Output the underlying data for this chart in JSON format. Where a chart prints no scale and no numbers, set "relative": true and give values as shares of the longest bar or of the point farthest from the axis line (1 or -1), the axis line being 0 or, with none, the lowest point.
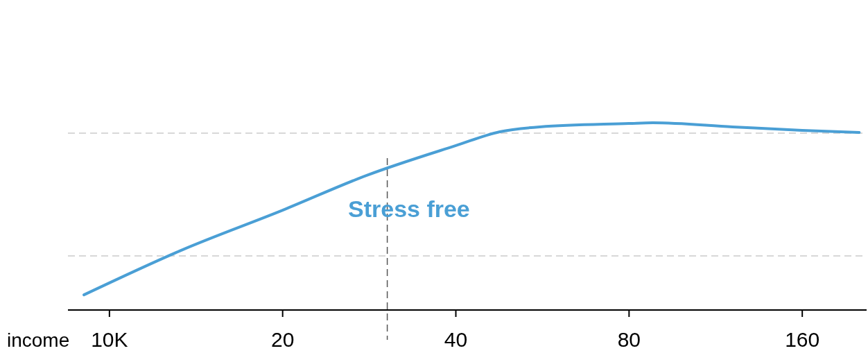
{
  "chart_data": {
    "type": "line",
    "relative": true,
    "log": "x",
    "xlabel": "income",
    "xlim": [
      8.47,
      207
    ],
    "xticks": [
      {
        "value": 10,
        "label": "10K"
      },
      20,
      40,
      80,
      160
    ],
    "series": [
      {
        "color": "#4a9fd5",
        "x": [
          9.03,
          13.4,
          20,
          28,
          40,
          47.7,
          56,
          80,
          88,
          121,
          160,
          201
        ],
        "values": [
          0.081,
          0.322,
          0.533,
          0.719,
          0.878,
          0.952,
          0.978,
          0.996,
          1,
          0.978,
          0.959,
          0.948
        ]
      }
    ],
    "ref_lines": [
      {
        "axis": "y",
        "value": 0.944,
        "color": "#cccccc",
        "line_style": "dashed"
      },
      {
        "axis": "y",
        "value": 0.289,
        "color": "#cccccc",
        "line_style": "dashed"
      },
      {
        "axis": "x",
        "value": 30.4,
        "color": "#555555",
        "line_style": "dashed"
      }
    ],
    "annotations": [
      "Stress free"
    ]
  }
}
